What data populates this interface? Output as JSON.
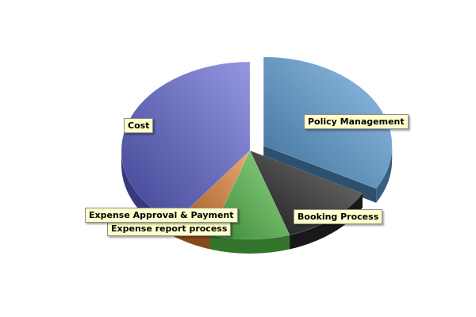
{
  "chart_data": {
    "type": "pie",
    "three_d": true,
    "slices": [
      {
        "label": "Policy Management",
        "value": 33,
        "color": "#5a9fdc",
        "exploded": true
      },
      {
        "label": "Booking Process",
        "value": 12,
        "color": "#2a2a2a",
        "exploded": false
      },
      {
        "label": "Expense report process",
        "value": 10,
        "color": "#55c24a",
        "exploded": false
      },
      {
        "label": "Expense Approval & Payment",
        "value": 5,
        "color": "#e07b2a",
        "exploded": false
      },
      {
        "label": "Cost",
        "value": 40,
        "color": "#5a5fd0",
        "exploded": false
      }
    ],
    "legend": "none",
    "data_labels": "slice labels"
  }
}
